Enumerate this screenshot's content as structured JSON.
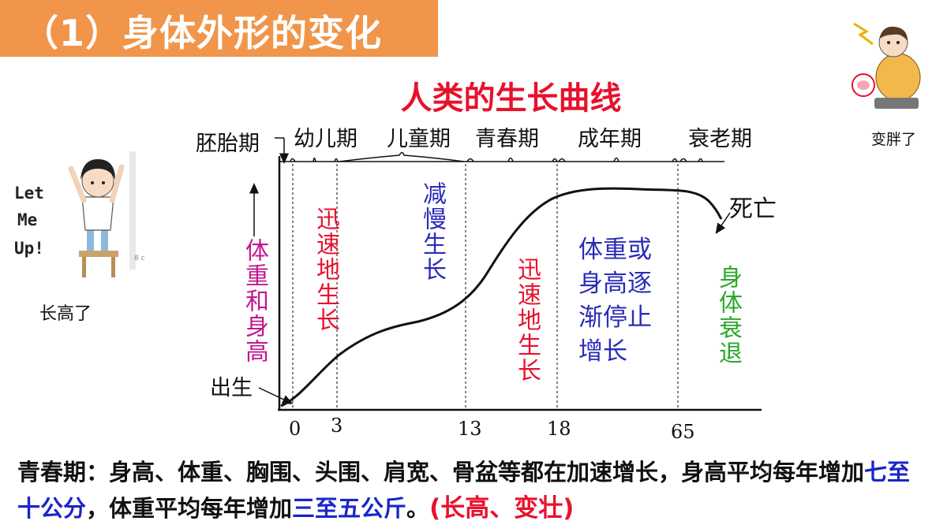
{
  "header": {
    "title": "（1）身体外形的变化"
  },
  "chart": {
    "title": "人类的生长曲线",
    "y_axis_label": "体重和身高",
    "stages": [
      "胚胎期",
      "幼儿期",
      "儿童期",
      "青春期",
      "成年期",
      "衰老期"
    ],
    "ticks": [
      "0",
      "3",
      "13",
      "18",
      "65"
    ],
    "annotations": {
      "birth": "出生",
      "death": "死亡",
      "stage1": "迅速地生长",
      "stage2": "减慢生长",
      "stage3": "迅速地生长",
      "stage4": "体重或身高逐渐停止增长",
      "stage4_lines": [
        "体重或",
        "身高逐",
        "渐停止",
        "增长"
      ],
      "stage5": "身体衰退"
    }
  },
  "colors": {
    "title_bar": "#F0954A",
    "chart_title": "#E8112D",
    "axis_label": "#C2178F",
    "fast_growth": "#E8112D",
    "slow_growth": "#2B2BB8",
    "decline": "#2BA82B"
  },
  "left_figure": {
    "caption": "长高了",
    "speech": [
      "Let",
      "Me",
      "Up!"
    ]
  },
  "right_figure": {
    "caption": "变胖了"
  },
  "summary": {
    "part1": "青春期：身高、体重、胸围、头围、肩宽、骨盆等都在加速增长，身高平均每年增加",
    "highlight1": "七至十公分",
    "part2": "，体重平均每年增加",
    "highlight2": "三至五公斤",
    "part3": "。",
    "highlight3": "(长高、变壮)"
  }
}
